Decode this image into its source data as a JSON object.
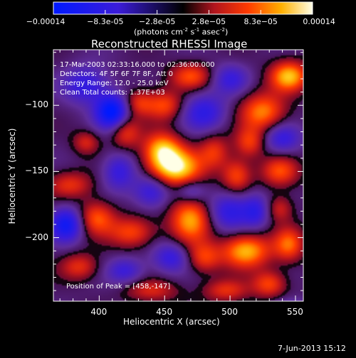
{
  "chart_data": {
    "type": "heatmap",
    "title": "Reconstructed RHESSI Image",
    "xlabel": "Heliocentric X (arcsec)",
    "ylabel": "Heliocentric Y (arcsec)",
    "xlim": [
      365,
      556
    ],
    "ylim": [
      -248,
      -58
    ],
    "xticks": [
      400,
      450,
      500,
      550
    ],
    "yticks": [
      -100,
      -150,
      -200
    ],
    "colorbar": {
      "ticks": [
        "-0.00014",
        "-8.3e-05",
        "-2.8e-05",
        "2.8e-05",
        "8.3e-05",
        "0.00014"
      ],
      "unit_main": "(photons cm",
      "unit_exp1": "-2",
      "unit_mid": " s",
      "unit_exp2": "-1",
      "unit_mid2": " asec",
      "unit_exp3": "-2",
      "unit_end": ")",
      "range": [
        -0.00014,
        0.00014
      ]
    },
    "annotations": {
      "time": "17-Mar-2003 02:33:16.000 to 02:36:00.000",
      "detectors": "Detectors: 4F 5F 6F 7F 8F, Att 0",
      "energy": "Energy Range: 12.0 - 25.0 keV",
      "clean": "Clean    Total counts: 1.37E+03",
      "peak": "Position of Peak = [458,-147]"
    },
    "peak": [
      458,
      -147
    ],
    "blobs": [
      {
        "x": 458,
        "y": -147,
        "sx": 14,
        "sy": 10,
        "a": 1.0
      },
      {
        "x": 448,
        "y": -133,
        "sx": 10,
        "sy": 9,
        "a": 0.75
      },
      {
        "x": 545,
        "y": -78,
        "sx": 10,
        "sy": 8,
        "a": 0.85
      },
      {
        "x": 525,
        "y": -105,
        "sx": 12,
        "sy": 10,
        "a": 0.7
      },
      {
        "x": 515,
        "y": -128,
        "sx": 8,
        "sy": 8,
        "a": 0.5
      },
      {
        "x": 538,
        "y": -150,
        "sx": 10,
        "sy": 8,
        "a": 0.55
      },
      {
        "x": 505,
        "y": -153,
        "sx": 8,
        "sy": 9,
        "a": 0.55
      },
      {
        "x": 488,
        "y": -135,
        "sx": 8,
        "sy": 9,
        "a": 0.45
      },
      {
        "x": 450,
        "y": -100,
        "sx": 10,
        "sy": 8,
        "a": 0.55
      },
      {
        "x": 430,
        "y": -98,
        "sx": 8,
        "sy": 7,
        "a": 0.45
      },
      {
        "x": 470,
        "y": -78,
        "sx": 11,
        "sy": 7,
        "a": 0.55
      },
      {
        "x": 420,
        "y": -120,
        "sx": 8,
        "sy": 9,
        "a": 0.5
      },
      {
        "x": 390,
        "y": -128,
        "sx": 7,
        "sy": 6,
        "a": 0.4
      },
      {
        "x": 378,
        "y": -160,
        "sx": 12,
        "sy": 7,
        "a": 0.45
      },
      {
        "x": 398,
        "y": -185,
        "sx": 10,
        "sy": 9,
        "a": 0.6
      },
      {
        "x": 425,
        "y": -196,
        "sx": 12,
        "sy": 8,
        "a": 0.55
      },
      {
        "x": 470,
        "y": -186,
        "sx": 11,
        "sy": 12,
        "a": 0.8
      },
      {
        "x": 480,
        "y": -215,
        "sx": 9,
        "sy": 8,
        "a": 0.5
      },
      {
        "x": 385,
        "y": -222,
        "sx": 10,
        "sy": 7,
        "a": 0.45
      },
      {
        "x": 512,
        "y": -210,
        "sx": 13,
        "sy": 9,
        "a": 0.85
      },
      {
        "x": 530,
        "y": -235,
        "sx": 9,
        "sy": 7,
        "a": 0.55
      },
      {
        "x": 545,
        "y": -205,
        "sx": 8,
        "sy": 9,
        "a": 0.6
      },
      {
        "x": 538,
        "y": -178,
        "sx": 7,
        "sy": 7,
        "a": 0.4
      },
      {
        "x": 497,
        "y": -240,
        "sx": 12,
        "sy": 6,
        "a": 0.45
      },
      {
        "x": 440,
        "y": -240,
        "sx": 14,
        "sy": 6,
        "a": 0.4
      },
      {
        "x": 410,
        "y": -105,
        "sx": 9,
        "sy": 9,
        "a": -1.0
      },
      {
        "x": 375,
        "y": -190,
        "sx": 9,
        "sy": 9,
        "a": -0.8
      },
      {
        "x": 390,
        "y": -85,
        "sx": 12,
        "sy": 10,
        "a": -0.55
      },
      {
        "x": 480,
        "y": -105,
        "sx": 12,
        "sy": 10,
        "a": -0.55
      },
      {
        "x": 540,
        "y": -125,
        "sx": 10,
        "sy": 8,
        "a": -0.5
      },
      {
        "x": 440,
        "y": -165,
        "sx": 10,
        "sy": 9,
        "a": -0.55
      },
      {
        "x": 500,
        "y": -180,
        "sx": 12,
        "sy": 10,
        "a": -0.6
      },
      {
        "x": 415,
        "y": -150,
        "sx": 9,
        "sy": 10,
        "a": -0.5
      },
      {
        "x": 455,
        "y": -215,
        "sx": 10,
        "sy": 8,
        "a": -0.5
      },
      {
        "x": 545,
        "y": -255,
        "sx": 10,
        "sy": 6,
        "a": -0.45
      },
      {
        "x": 500,
        "y": -80,
        "sx": 10,
        "sy": 8,
        "a": -0.45
      },
      {
        "x": 420,
        "y": -225,
        "sx": 10,
        "sy": 7,
        "a": -0.45
      },
      {
        "x": 520,
        "y": -180,
        "sx": 7,
        "sy": 9,
        "a": -0.45
      },
      {
        "x": 470,
        "y": -165,
        "sx": 8,
        "sy": 6,
        "a": -0.4
      }
    ]
  },
  "footer": {
    "date": "7-Jun-2013 15:12"
  }
}
